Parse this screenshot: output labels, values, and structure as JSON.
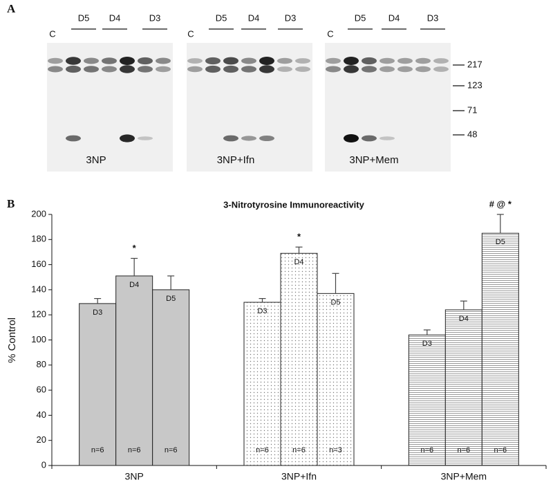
{
  "panel_labels": [
    "A",
    "B"
  ],
  "blots": [
    {
      "label": "3NP",
      "lanes": [
        "C",
        "D5",
        "D4",
        "D3"
      ]
    },
    {
      "label": "3NP+Ifn",
      "lanes": [
        "C",
        "D5",
        "D4",
        "D3"
      ]
    },
    {
      "label": "3NP+Mem",
      "lanes": [
        "C",
        "D5",
        "D4",
        "D3"
      ]
    }
  ],
  "size_markers": [
    "217",
    "123",
    "71",
    "48"
  ],
  "chart_data": {
    "type": "bar",
    "title": "3-Nitrotyrosine Immunoreactivity",
    "ylabel": "% Control",
    "categories": [
      "3NP",
      "3NP+Ifn",
      "3NP+Mem"
    ],
    "category_fills": [
      "solid",
      "dots",
      "hlines"
    ],
    "category_colors": [
      "#c8c8c8",
      "#ffffff",
      "#ffffff"
    ],
    "series": [
      {
        "name": "D3",
        "values": [
          129,
          130,
          104
        ],
        "errors": [
          4,
          3,
          4
        ],
        "n_labels": [
          "n=6",
          "n=6",
          "n=6"
        ],
        "annotations": [
          null,
          null,
          null
        ]
      },
      {
        "name": "D4",
        "values": [
          151,
          169,
          124
        ],
        "errors": [
          14,
          5,
          7
        ],
        "n_labels": [
          "n=6",
          "n=6",
          "n=6"
        ],
        "annotations": [
          "*",
          "*",
          null
        ]
      },
      {
        "name": "D5",
        "values": [
          140,
          137,
          185
        ],
        "errors": [
          11,
          16,
          15
        ],
        "n_labels": [
          "n=6",
          "n=3",
          "n=6"
        ],
        "annotations": [
          null,
          null,
          "# @ *"
        ]
      }
    ],
    "ylim": [
      0,
      200
    ],
    "yticks": [
      0,
      20,
      40,
      60,
      80,
      100,
      120,
      140,
      160,
      180,
      200
    ]
  }
}
